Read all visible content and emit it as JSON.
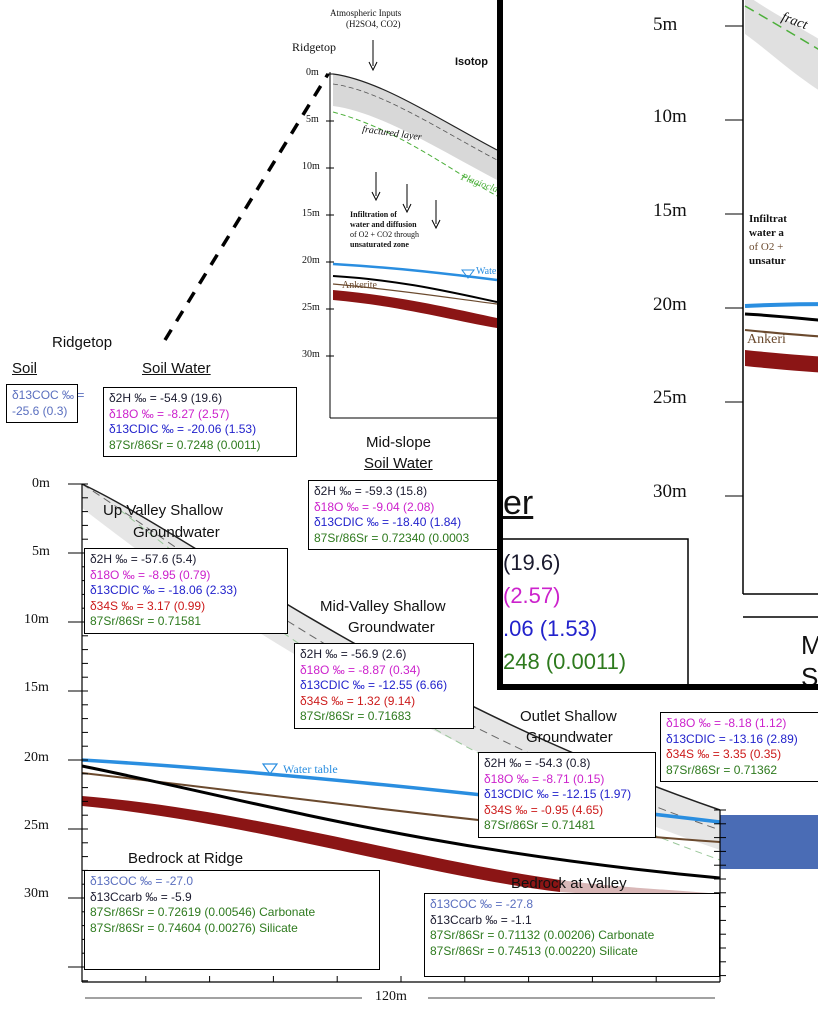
{
  "main": {
    "ridgetop": "Ridgetop",
    "soil_title": "Soil",
    "soil_water_title": "Soil Water",
    "soil_box": [
      "δ13COC ‰ =",
      "-25.6 (0.3)"
    ],
    "soil_water_box": [
      "δ2H ‰ = -54.9 (19.6)",
      "δ18O ‰ = -8.27 (2.57)",
      "δ13CDIC ‰ = -20.06 (1.53)",
      "87Sr/86Sr = 0.7248 (0.0011)"
    ],
    "midslope_title_1": "Mid-slope",
    "midslope_title_2": "Soil Water",
    "midslope_box": [
      "δ2H ‰ = -59.3 (15.8)",
      "δ18O ‰ =  -9.04 (2.08)",
      "δ13CDIC ‰ = -18.40 (1.84)",
      "87Sr/86Sr = 0.72340 (0.0003"
    ],
    "upvalley_title_1": "Up Valley Shallow",
    "upvalley_title_2": "Groundwater",
    "upvalley_box": [
      "δ2H ‰ = -57.6 (5.4)",
      "δ18O ‰ = -8.95 (0.79)",
      "δ13CDIC ‰ = -18.06 (2.33)",
      "δ34S ‰ = 3.17 (0.99)",
      "87Sr/86Sr = 0.71581"
    ],
    "midvalley_title_1": "Mid-Valley Shallow",
    "midvalley_title_2": "Groundwater",
    "midvalley_box": [
      "δ2H ‰ = -56.9 (2.6)",
      "δ18O ‰ = -8.87 (0.34)",
      "δ13CDIC ‰ = -12.55 (6.66)",
      "δ34S ‰ = 1.32 (9.14)",
      "87Sr/86Sr = 0.71683"
    ],
    "outlet_title_1": "Outlet Shallow",
    "outlet_title_2": "Groundwater",
    "outlet_box": [
      "δ2H ‰ = -54.3 (0.8)",
      "δ18O ‰ = -8.71 (0.15)",
      "δ13CDIC ‰ = -12.15 (1.97)",
      "δ34S ‰ = -0.95 (4.65)",
      "87Sr/86Sr = 0.71481"
    ],
    "right_box": [
      "δ18O ‰ = -8.18 (1.12)",
      "δ13CDIC = -13.16 (2.89)",
      "δ34S ‰ = 3.35 (0.35)",
      "87Sr/86Sr = 0.71362"
    ],
    "bedrock_ridge_title": "Bedrock at Ridge",
    "bedrock_ridge_box": [
      "δ13COC ‰ = -27.0",
      "δ13Ccarb ‰ = -5.9",
      "87Sr/86Sr = 0.72619 (0.00546) Carbonate",
      "87Sr/86Sr = 0.74604 (0.00276) Silicate"
    ],
    "bedrock_valley_title": "Bedrock at Valley",
    "bedrock_valley_box": [
      "δ13COC ‰ = -27.8",
      "δ13Ccarb ‰ = -1.1",
      "87Sr/86Sr = 0.71132 (0.00206) Carbonate",
      "87Sr/86Sr = 0.74513 (0.00220) Silicate"
    ],
    "water_table": "Water table",
    "width_label": "120m",
    "y_ticks": [
      "0m",
      "5m",
      "10m",
      "15m",
      "20m",
      "25m",
      "30m"
    ]
  },
  "inset": {
    "atmospheric": "Atmospheric Inputs",
    "atmospheric_sub": "(H2SO4, CO2)",
    "ridgetop": "Ridgetop",
    "isotope": "Isotop",
    "fractured": "fractured layer",
    "plagioclase": "Plagiocla",
    "infiltration": [
      "Infiltration of",
      "water and diffusion",
      "of O2 + CO2 through",
      "unsaturated zone"
    ],
    "water": "Wate",
    "ankerite": "Ankerite",
    "y_ticks": [
      "0m",
      "5m",
      "10m",
      "15m",
      "20m",
      "25m",
      "30m"
    ]
  },
  "zoom": {
    "y_ticks": [
      "5m",
      "10m",
      "15m",
      "20m",
      "25m",
      "30m"
    ],
    "fractured": "fract",
    "infiltration": [
      "Infiltrat",
      "water a",
      "of O2 +",
      "unsatur"
    ],
    "ankerite": "Ankeri",
    "er": "er",
    "values": [
      "(19.6)",
      "(2.57)",
      ".06 (1.53)",
      "248 (0.0011)"
    ],
    "m": "M",
    "s": "S"
  },
  "colors": {
    "water_table": "#2a8ee0",
    "bedrock_band": "#8b1515",
    "ankerite": "#6b4a2e",
    "plagioclase": "#4caf3a",
    "blue_patch": "#4a6cb5"
  }
}
